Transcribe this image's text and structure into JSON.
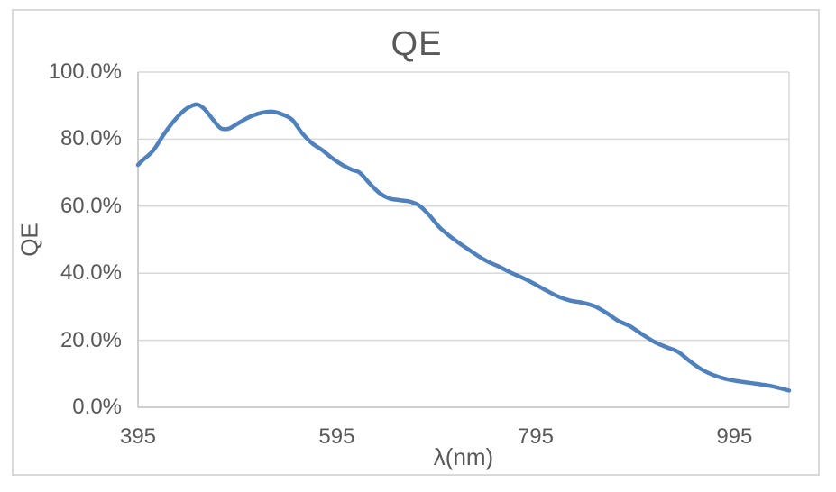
{
  "chart": {
    "title": "QE",
    "x_axis_title": "λ(nm)",
    "y_axis_title": "QE"
  },
  "chart_data": {
    "type": "line",
    "title": "QE",
    "xlabel": "λ(nm)",
    "ylabel": "QE",
    "legend": false,
    "grid": true,
    "smooth_line": true,
    "xlim": [
      395,
      1050
    ],
    "ylim_percent": [
      0,
      100
    ],
    "x_ticks": [
      {
        "value": 395,
        "label": "395"
      },
      {
        "value": 595,
        "label": "595"
      },
      {
        "value": 795,
        "label": "795"
      },
      {
        "value": 995,
        "label": "995"
      }
    ],
    "y_ticks": [
      {
        "value": 100,
        "label": "100.0%"
      },
      {
        "value": 80,
        "label": "80.0%"
      },
      {
        "value": 60,
        "label": "60.0%"
      },
      {
        "value": 40,
        "label": "40.0%"
      },
      {
        "value": 20,
        "label": "20.0%"
      },
      {
        "value": 0,
        "label": "0.0%"
      }
    ],
    "series": [
      {
        "name": "QE",
        "x_nm": [
          395,
          400,
          410,
          420,
          430,
          440,
          448,
          455,
          462,
          470,
          478,
          486,
          494,
          502,
          510,
          520,
          530,
          540,
          550,
          560,
          570,
          580,
          590,
          600,
          610,
          618,
          628,
          638,
          648,
          658,
          668,
          678,
          688,
          698,
          708,
          718,
          728,
          738,
          748,
          758,
          770,
          782,
          794,
          806,
          818,
          830,
          842,
          854,
          866,
          878,
          890,
          902,
          914,
          926,
          938,
          950,
          962,
          974,
          986,
          998,
          1010,
          1022,
          1034,
          1050
        ],
        "qe_percent": [
          72.3,
          73.8,
          76.5,
          81.0,
          85.0,
          88.2,
          89.8,
          90.3,
          88.9,
          86.0,
          83.3,
          83.1,
          84.4,
          85.8,
          87.0,
          87.9,
          88.2,
          87.4,
          85.8,
          81.8,
          78.8,
          76.8,
          74.4,
          72.4,
          70.9,
          70.0,
          66.8,
          63.9,
          62.3,
          61.8,
          61.4,
          60.2,
          57.3,
          53.8,
          51.2,
          49.0,
          47.0,
          45.0,
          43.3,
          42.0,
          40.2,
          38.6,
          36.8,
          34.8,
          33.0,
          31.8,
          31.2,
          30.2,
          28.2,
          25.8,
          24.2,
          21.8,
          19.6,
          18.0,
          16.6,
          13.8,
          11.3,
          9.6,
          8.5,
          7.8,
          7.3,
          6.8,
          6.2,
          5.0
        ]
      }
    ],
    "colors": {
      "line": "#4F81BD",
      "gridline": "#D9D9D9",
      "axis": "#BFBFBF",
      "text": "#595959",
      "frame_border": "#D9D9D9",
      "background": "#FFFFFF"
    }
  }
}
